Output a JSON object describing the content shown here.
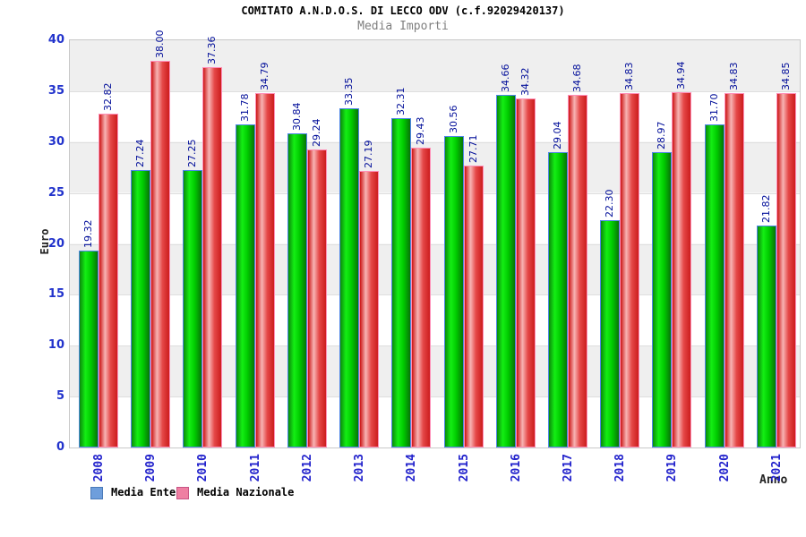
{
  "page": {
    "title": "COMITATO A.N.D.O.S. DI LECCO ODV (c.f.92029420137)",
    "subtitle": "Media Importi"
  },
  "chart_data": {
    "type": "bar",
    "title": "COMITATO A.N.D.O.S. DI LECCO ODV (c.f.92029420137)",
    "subtitle": "Media Importi",
    "xlabel": "Anno",
    "ylabel": "Euro",
    "ylim": [
      0,
      40
    ],
    "yticks": [
      0,
      5,
      10,
      15,
      20,
      25,
      30,
      35,
      40
    ],
    "grid": "alternating 5-unit horizontal bands (gray/white), thin gridlines at ticks",
    "legend_position": "bottom-left",
    "value_label_format": "two decimals, rotated 90deg above each bar, navy",
    "categories": [
      "2008",
      "2009",
      "2010",
      "2011",
      "2012",
      "2013",
      "2014",
      "2015",
      "2016",
      "2017",
      "2018",
      "2019",
      "2020",
      "2021"
    ],
    "series": [
      {
        "name": "Media Ente",
        "legend_swatch_fill": "#6e9edc",
        "legend_swatch_border": "#4a7ab8",
        "bar_border": "#4f86e8",
        "bar_gradient": [
          "#0b8a0b",
          "#14ee14",
          "#00cc00",
          "#077407"
        ],
        "values": [
          19.32,
          27.24,
          27.25,
          31.78,
          30.84,
          33.35,
          32.31,
          30.56,
          34.66,
          29.04,
          22.3,
          28.97,
          31.7,
          21.82
        ]
      },
      {
        "name": "Media Nazionale",
        "legend_swatch_fill": "#ef7fa2",
        "legend_swatch_border": "#c75585",
        "bar_border": "#ff8fb8",
        "bar_gradient": [
          "#cc1414",
          "#f7b4b4",
          "#e54848",
          "#cc1d1d"
        ],
        "values": [
          32.82,
          38.0,
          37.36,
          34.79,
          29.24,
          27.19,
          29.43,
          27.71,
          34.32,
          34.68,
          34.83,
          34.94,
          34.83,
          34.85
        ]
      }
    ]
  },
  "colors": {
    "tick_label_blue": "#2233cc",
    "value_label_navy": "#000d99",
    "axis_title": "#222222",
    "subtitle_gray": "#7f7f7f",
    "band_gray": "#efefef",
    "band_white": "#ffffff",
    "plot_border": "#c8c8c8"
  }
}
